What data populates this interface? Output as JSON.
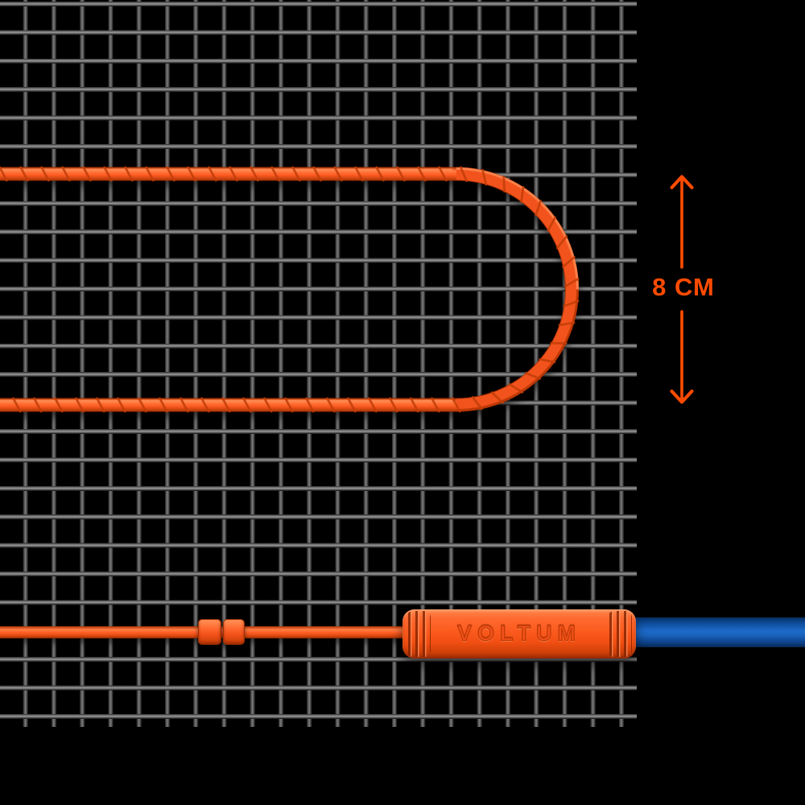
{
  "diagram": {
    "brand_label": "VOLTUM",
    "dimension": {
      "label": "8 СМ"
    },
    "colors": {
      "background": "#000000",
      "accent_orange": "#ff4b00",
      "cable_orange": "#f6541d",
      "connector_orange": "#fb5a1e",
      "cold_lead_blue": "#1565c0",
      "mesh_wire": "#6a6a6a"
    }
  }
}
